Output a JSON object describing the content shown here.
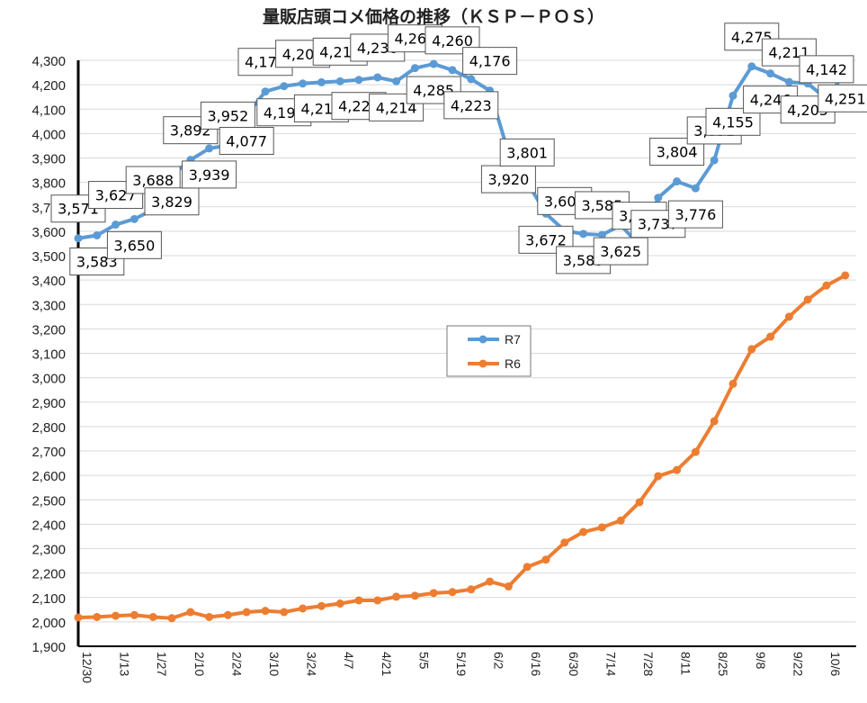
{
  "chart_data": {
    "type": "line",
    "title": "量販店頭コメ価格の推移（ＫＳＰ－ＰＯＳ）",
    "xlabel": "",
    "ylabel": "",
    "ylim": [
      1900,
      4300
    ],
    "ytick_step": 100,
    "grid": true,
    "legend": "center",
    "x_tick_labels": [
      "12/30",
      "1/13",
      "1/27",
      "2/10",
      "2/24",
      "3/10",
      "3/24",
      "4/7",
      "4/21",
      "5/5",
      "5/19",
      "6/2",
      "6/16",
      "6/30",
      "7/14",
      "7/28",
      "8/11",
      "8/25",
      "9/8",
      "9/22",
      "10/6"
    ],
    "series": [
      {
        "name": "R7",
        "color": "#5B9BD5",
        "data_labels": true,
        "values": [
          3571,
          3583,
          3627,
          3650,
          3688,
          3829,
          3892,
          3939,
          3952,
          4077,
          4172,
          4194,
          4205,
          4210,
          4214,
          4220,
          4230,
          4214,
          4268,
          4285,
          4260,
          4223,
          4176,
          3920,
          3801,
          3672,
          3602,
          3589,
          3585,
          3625,
          3542,
          3737,
          3804,
          3776,
          3891,
          4155,
          4275,
          4246,
          4211,
          4205,
          4142,
          4251
        ]
      },
      {
        "name": "R6",
        "color": "#ED7D31",
        "data_labels": false,
        "values": [
          2018,
          2020,
          2025,
          2028,
          2020,
          2015,
          2040,
          2020,
          2028,
          2040,
          2045,
          2040,
          2055,
          2065,
          2075,
          2088,
          2088,
          2103,
          2107,
          2118,
          2122,
          2133,
          2165,
          2145,
          2225,
          2255,
          2325,
          2368,
          2387,
          2415,
          2490,
          2597,
          2622,
          2696,
          2822,
          2975,
          3117,
          3168,
          3250,
          3320,
          3378,
          3419
        ]
      }
    ]
  }
}
